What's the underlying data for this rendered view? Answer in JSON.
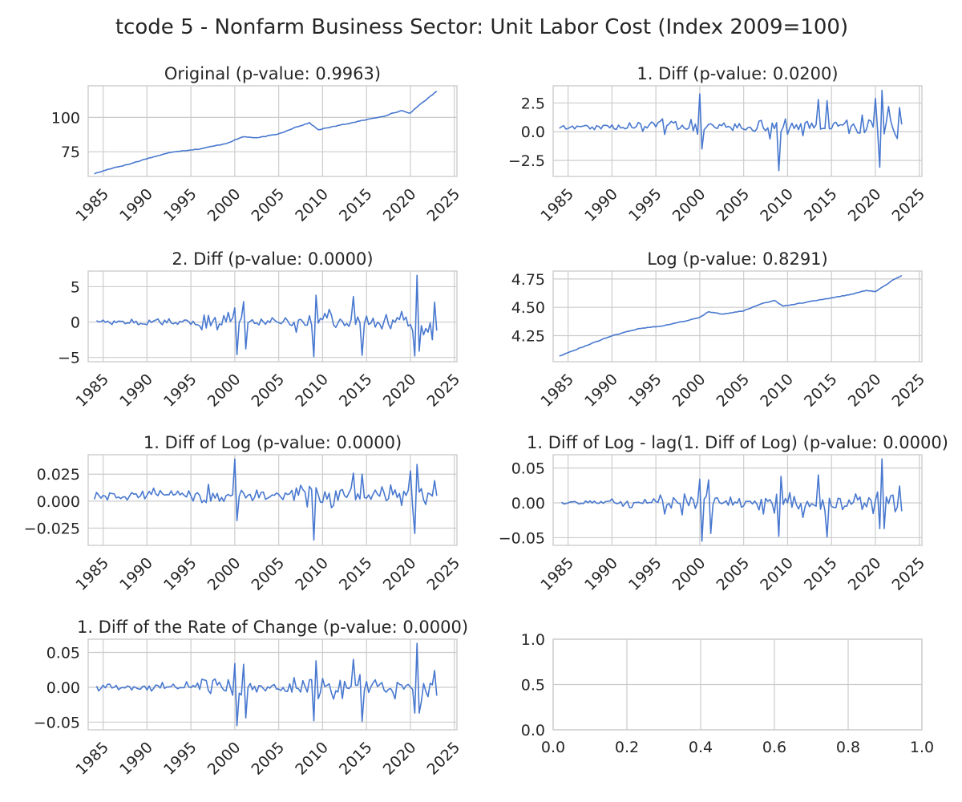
{
  "suptitle": "tcode 5 - Nonfarm Business Sector: Unit Labor Cost (Index 2009=100)",
  "colors": {
    "line": "#4878cf",
    "grid": "#cccccc",
    "text": "#262626",
    "background": "#ffffff"
  },
  "chart_data": [
    {
      "type": "line",
      "title": "Original (p-value: 0.9963)",
      "xlabel": "",
      "ylabel": "",
      "xlim": [
        1983.3,
        2025.3
      ],
      "ylim": [
        57,
        123
      ],
      "xticks": [
        "1985",
        "1990",
        "1995",
        "2000",
        "2005",
        "2010",
        "2015",
        "2020",
        "2025"
      ],
      "yticks": [
        "75",
        "100"
      ],
      "grid": true,
      "series": [
        {
          "style": "trend",
          "x": [
            1984.0,
            1986.0,
            1988.0,
            1990.0,
            1993.0,
            1996.0,
            1999.0,
            2001.0,
            2002.5,
            2005.0,
            2007.0,
            2008.5,
            2009.5,
            2011.0,
            2014.0,
            2017.0,
            2019.0,
            2020.0,
            2021.0,
            2022.0,
            2023.0
          ],
          "y": [
            59,
            63,
            66,
            70,
            75,
            77,
            81,
            86,
            85,
            88,
            93,
            96,
            91,
            93,
            97,
            101,
            105,
            103,
            109,
            114,
            119
          ]
        }
      ]
    },
    {
      "type": "line",
      "title": "1. Diff (p-value: 0.0200)",
      "xlabel": "",
      "ylabel": "",
      "xlim": [
        1983.3,
        2025.3
      ],
      "ylim": [
        -3.9,
        4.0
      ],
      "xticks": [
        "1985",
        "1990",
        "1995",
        "2000",
        "2005",
        "2010",
        "2015",
        "2020",
        "2025"
      ],
      "yticks": [
        "−2.5",
        "0.0",
        "2.5"
      ],
      "grid": true,
      "series": [
        {
          "style": "noise",
          "start": 1984.0,
          "end": 2023.0,
          "n": 157,
          "base": 0.45,
          "amp": [
            0.35,
            0.6,
            1.2,
            0.55,
            1.5,
            1.1,
            1.4
          ],
          "spikes": [
            [
              2000.0,
              3.3
            ],
            [
              2000.25,
              -1.5
            ],
            [
              2009.0,
              -3.4
            ],
            [
              2013.5,
              2.8
            ],
            [
              2014.5,
              2.7
            ],
            [
              2020.0,
              2.9
            ],
            [
              2020.5,
              -3.1
            ],
            [
              2020.75,
              3.6
            ],
            [
              2021.5,
              2.2
            ],
            [
              2022.5,
              -0.6
            ],
            [
              2022.75,
              2.1
            ]
          ]
        }
      ]
    },
    {
      "type": "line",
      "title": "2. Diff (p-value: 0.0000)",
      "xlabel": "",
      "ylabel": "",
      "xlim": [
        1983.3,
        2025.3
      ],
      "ylim": [
        -5.6,
        7.2
      ],
      "xticks": [
        "1985",
        "1990",
        "1995",
        "2000",
        "2005",
        "2010",
        "2015",
        "2020",
        "2025"
      ],
      "yticks": [
        "−5",
        "0",
        "5"
      ],
      "grid": true,
      "series": [
        {
          "style": "noise",
          "start": 1984.25,
          "end": 2023.0,
          "n": 156,
          "base": 0.0,
          "amp": [
            0.45,
            0.7,
            1.7,
            0.9,
            2.3,
            1.6,
            2.0
          ],
          "spikes": [
            [
              2000.0,
              2.0
            ],
            [
              2000.25,
              -4.6
            ],
            [
              2001.0,
              2.9
            ],
            [
              2001.25,
              -3.8
            ],
            [
              2009.0,
              -4.9
            ],
            [
              2009.25,
              3.8
            ],
            [
              2013.5,
              3.6
            ],
            [
              2014.5,
              -4.7
            ],
            [
              2020.5,
              -4.8
            ],
            [
              2020.75,
              6.6
            ],
            [
              2021.0,
              -4.1
            ],
            [
              2022.5,
              -2.5
            ],
            [
              2022.75,
              2.8
            ],
            [
              2023.0,
              -1.2
            ]
          ]
        }
      ]
    },
    {
      "type": "line",
      "title": "Log (p-value: 0.8291)",
      "xlabel": "",
      "ylabel": "",
      "xlim": [
        1983.3,
        2025.3
      ],
      "ylim": [
        4.02,
        4.82
      ],
      "xticks": [
        "1985",
        "1990",
        "1995",
        "2000",
        "2005",
        "2010",
        "2015",
        "2020",
        "2025"
      ],
      "yticks": [
        "4.25",
        "4.50",
        "4.75"
      ],
      "grid": true,
      "series": [
        {
          "style": "trend",
          "x": [
            1984.0,
            1986.0,
            1988.0,
            1990.0,
            1993.0,
            1996.0,
            1999.0,
            2000.0,
            2001.0,
            2002.5,
            2005.0,
            2007.0,
            2008.5,
            2009.5,
            2011.0,
            2014.0,
            2017.0,
            2019.0,
            2020.0,
            2021.0,
            2022.0,
            2023.0
          ],
          "y": [
            4.07,
            4.13,
            4.19,
            4.25,
            4.31,
            4.34,
            4.39,
            4.41,
            4.46,
            4.44,
            4.47,
            4.53,
            4.56,
            4.51,
            4.53,
            4.57,
            4.61,
            4.65,
            4.64,
            4.69,
            4.74,
            4.78
          ]
        }
      ]
    },
    {
      "type": "line",
      "title": "1. Diff of Log (p-value: 0.0000)",
      "xlabel": "",
      "ylabel": "",
      "xlim": [
        1983.3,
        2025.3
      ],
      "ylim": [
        -0.041,
        0.043
      ],
      "xticks": [
        "1985",
        "1990",
        "1995",
        "2000",
        "2005",
        "2010",
        "2015",
        "2020",
        "2025"
      ],
      "yticks": [
        "−0.025",
        "0.000",
        "0.025"
      ],
      "grid": true,
      "series": [
        {
          "style": "noise",
          "start": 1984.0,
          "end": 2023.0,
          "n": 157,
          "base": 0.006,
          "amp": [
            0.006,
            0.008,
            0.013,
            0.007,
            0.016,
            0.011,
            0.014
          ],
          "spikes": [
            [
              2000.0,
              0.039
            ],
            [
              2000.25,
              -0.018
            ],
            [
              2009.0,
              -0.036
            ],
            [
              2013.5,
              0.026
            ],
            [
              2014.5,
              0.025
            ],
            [
              2020.0,
              0.028
            ],
            [
              2020.5,
              -0.03
            ],
            [
              2020.75,
              0.034
            ],
            [
              2022.75,
              0.019
            ],
            [
              2023.0,
              0.005
            ]
          ]
        }
      ]
    },
    {
      "type": "line",
      "title": "1. Diff of Log - lag(1. Diff of Log) (p-value: 0.0000)",
      "xlabel": "",
      "ylabel": "",
      "xlim": [
        1983.3,
        2025.3
      ],
      "ylim": [
        -0.061,
        0.069
      ],
      "xticks": [
        "1985",
        "1990",
        "1995",
        "2000",
        "2005",
        "2010",
        "2015",
        "2020",
        "2025"
      ],
      "yticks": [
        "−0.05",
        "0.00",
        "0.05"
      ],
      "grid": true,
      "series": [
        {
          "style": "noise",
          "start": 1984.25,
          "end": 2023.0,
          "n": 156,
          "base": 0.0,
          "amp": [
            0.006,
            0.009,
            0.022,
            0.012,
            0.028,
            0.019,
            0.023
          ],
          "spikes": [
            [
              2000.0,
              0.034
            ],
            [
              2000.25,
              -0.055
            ],
            [
              2001.0,
              0.033
            ],
            [
              2001.25,
              -0.044
            ],
            [
              2009.0,
              -0.048
            ],
            [
              2009.25,
              0.038
            ],
            [
              2013.5,
              0.04
            ],
            [
              2014.5,
              -0.049
            ],
            [
              2020.5,
              -0.037
            ],
            [
              2020.75,
              0.063
            ],
            [
              2021.0,
              -0.037
            ],
            [
              2022.75,
              0.024
            ],
            [
              2023.0,
              -0.012
            ]
          ]
        }
      ]
    },
    {
      "type": "line",
      "title": "1. Diff of the Rate of Change (p-value: 0.0000)",
      "xlabel": "",
      "ylabel": "",
      "xlim": [
        1983.3,
        2025.3
      ],
      "ylim": [
        -0.061,
        0.069
      ],
      "xticks": [
        "1985",
        "1990",
        "1995",
        "2000",
        "2005",
        "2010",
        "2015",
        "2020",
        "2025"
      ],
      "yticks": [
        "−0.05",
        "0.00",
        "0.05"
      ],
      "grid": true,
      "series": [
        {
          "style": "noise",
          "start": 1984.25,
          "end": 2023.0,
          "n": 156,
          "base": 0.0,
          "amp": [
            0.006,
            0.009,
            0.022,
            0.012,
            0.028,
            0.019,
            0.023
          ],
          "spikes": [
            [
              2000.0,
              0.034
            ],
            [
              2000.25,
              -0.055
            ],
            [
              2001.0,
              0.033
            ],
            [
              2001.25,
              -0.044
            ],
            [
              2009.0,
              -0.048
            ],
            [
              2009.25,
              0.038
            ],
            [
              2013.5,
              0.04
            ],
            [
              2014.5,
              -0.049
            ],
            [
              2020.5,
              -0.037
            ],
            [
              2020.75,
              0.063
            ],
            [
              2021.0,
              -0.037
            ],
            [
              2022.75,
              0.024
            ],
            [
              2023.0,
              -0.012
            ]
          ]
        }
      ]
    },
    {
      "type": "line",
      "title": "",
      "xlabel": "",
      "ylabel": "",
      "xlim": [
        0,
        1
      ],
      "ylim": [
        0,
        1
      ],
      "xticks": [
        "0.0",
        "0.2",
        "0.4",
        "0.6",
        "0.8",
        "1.0"
      ],
      "yticks": [
        "0.0",
        "0.5",
        "1.0"
      ],
      "grid": true,
      "series": []
    }
  ]
}
